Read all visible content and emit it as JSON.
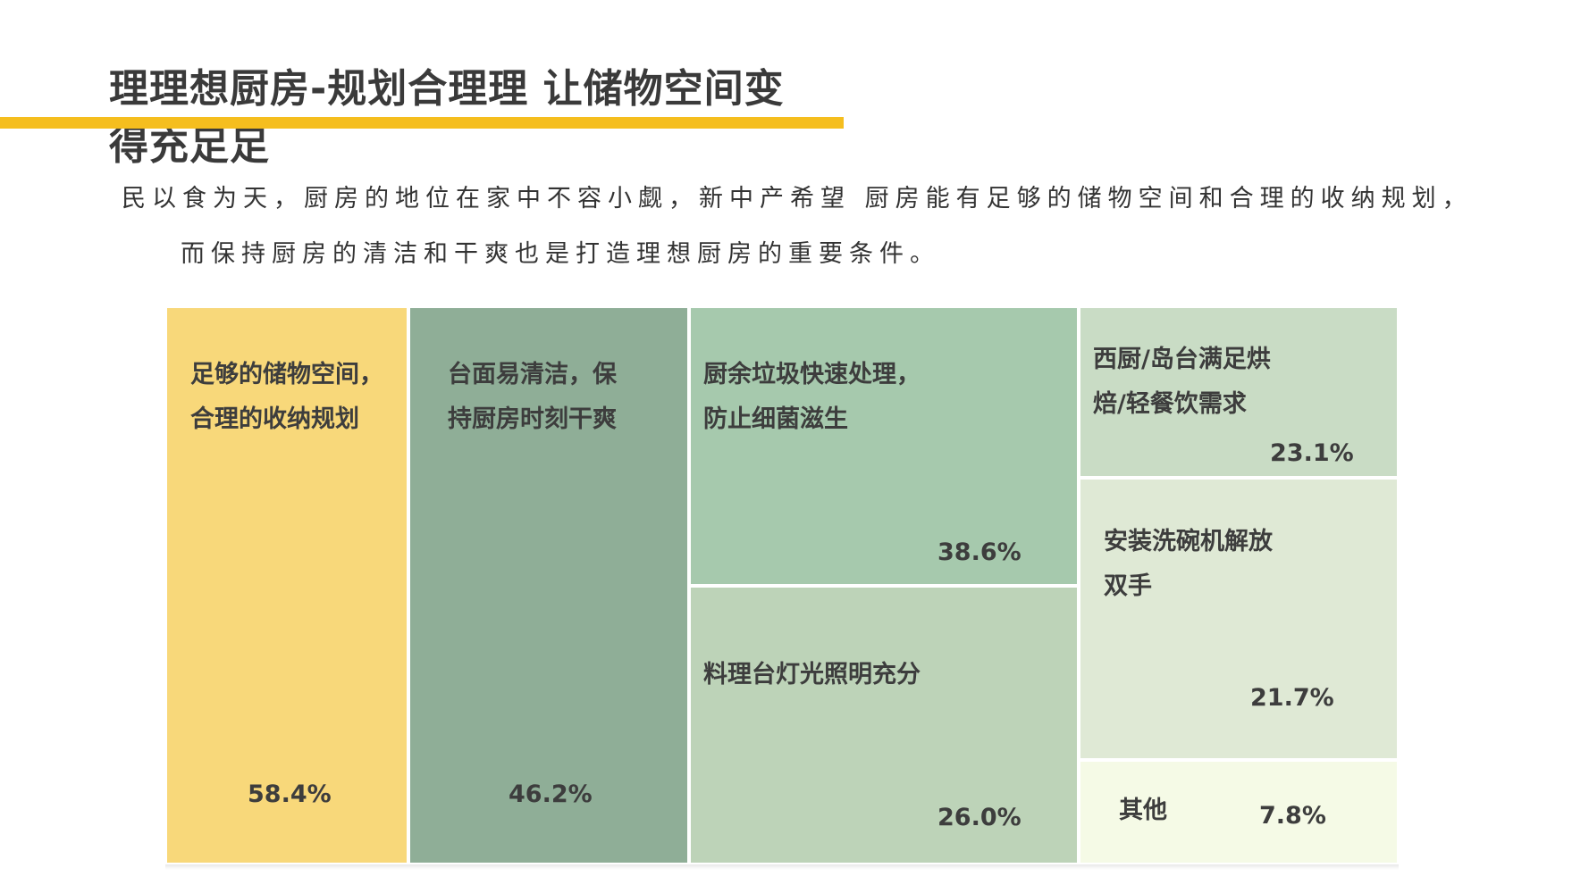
{
  "title": "理理想厨房-规划合理理 让储物空间变得充足足",
  "intro": {
    "line1": "民以食为天，厨房的地位在家中不容小觑，新中产希望 厨房能有足够的储物空间和合理的收纳规划，",
    "line2": "而保持厨房的清洁和干爽也是打造理想厨房的重要条件。"
  },
  "colors": {
    "accent": "#f5be1e"
  },
  "chart_data": {
    "type": "treemap",
    "unit": "%",
    "items": [
      {
        "label": "足够的储物空间，\n合理的收纳规划",
        "value": 58.4,
        "value_text": "58.4%",
        "color": "#f8d87a"
      },
      {
        "label": "台面易清洁，保\n持厨房时刻干爽",
        "value": 46.2,
        "value_text": "46.2%",
        "color": "#8fae97"
      },
      {
        "label": "厨余垃圾快速处理，\n防止细菌滋生",
        "value": 38.6,
        "value_text": "38.6%",
        "color": "#a6c9ad"
      },
      {
        "label": "料理台灯光照明充分",
        "value": 26.0,
        "value_text": "26.0%",
        "color": "#bdd3b8"
      },
      {
        "label": "西厨/岛台满足烘\n焙/轻餐饮需求",
        "value": 23.1,
        "value_text": "23.1%",
        "color": "#c9dcc5"
      },
      {
        "label": "安装洗碗机解放\n双手",
        "value": 21.7,
        "value_text": "21.7%",
        "color": "#dfe9d5"
      },
      {
        "label": "其他",
        "value": 7.8,
        "value_text": "7.8%",
        "color": "#f5fae6"
      }
    ]
  }
}
